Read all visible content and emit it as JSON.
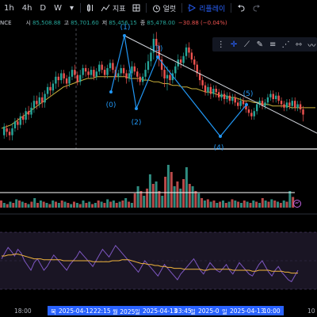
{
  "toolbar": {
    "timeframes": [
      "1h",
      "4h",
      "D",
      "W"
    ],
    "chevron": "▾",
    "indicators_label": "지표",
    "alert_label": "얼럿",
    "replay_label": "리플레이",
    "icons": [
      "candle-type-icon",
      "indicators-icon",
      "layout-icon",
      "alert-icon",
      "replay-icon",
      "undo-icon",
      "redo-icon"
    ]
  },
  "legend": {
    "symbol_fragment": "NCE",
    "open_label": "시",
    "open": "85,508.88",
    "high_label": "고",
    "high": "85,701.60",
    "low_label": "저",
    "low": "85,456.15",
    "close_label": "종",
    "close": "85,478.00",
    "change": "−30.88 (−0.04%)"
  },
  "drawing_tools": [
    "crosshair",
    "trend-line",
    "brush",
    "fib",
    "pattern",
    "measure",
    "wave"
  ],
  "elliott_labels": [
    "(0)",
    "(1)",
    "(2)",
    "(3)",
    "(4)",
    "(5)"
  ],
  "time_axis": {
    "left_label": "18:00",
    "right_label": "10",
    "highlight_segments": [
      "목",
      "2025-04-12",
      "22:15",
      "월 2025",
      "일",
      "2025-04-13",
      "03:45",
      "일",
      "2025-0",
      "일",
      "2025-04-13",
      "10:00"
    ]
  },
  "colors": {
    "up": "#26a69a",
    "down": "#ef5350",
    "ma": "#c9b03a",
    "wave": "#2196f3",
    "rsi": "#7e57c2",
    "rsi_ma": "#f0b43c",
    "accent": "#2962ff"
  },
  "price_chart": {
    "candles": [
      [
        68,
        73,
        66,
        75
      ],
      [
        72,
        70,
        67,
        74
      ],
      [
        70,
        68,
        65,
        72
      ],
      [
        68,
        72,
        65,
        75
      ],
      [
        72,
        76,
        70,
        78
      ],
      [
        76,
        74,
        71,
        78
      ],
      [
        74,
        79,
        72,
        81
      ],
      [
        79,
        77,
        74,
        81
      ],
      [
        77,
        82,
        75,
        84
      ],
      [
        82,
        80,
        77,
        85
      ],
      [
        80,
        84,
        78,
        87
      ],
      [
        84,
        88,
        81,
        91
      ],
      [
        88,
        86,
        83,
        91
      ],
      [
        86,
        90,
        84,
        93
      ],
      [
        90,
        87,
        84,
        93
      ],
      [
        87,
        92,
        84,
        94
      ],
      [
        92,
        96,
        90,
        98
      ],
      [
        96,
        94,
        91,
        99
      ],
      [
        94,
        98,
        92,
        100
      ],
      [
        98,
        102,
        95,
        105
      ],
      [
        102,
        100,
        96,
        104
      ],
      [
        100,
        104,
        98,
        106
      ],
      [
        104,
        101,
        98,
        106
      ],
      [
        101,
        98,
        95,
        103
      ],
      [
        98,
        102,
        96,
        105
      ],
      [
        102,
        106,
        100,
        108
      ],
      [
        106,
        103,
        101,
        109
      ],
      [
        103,
        99,
        97,
        105
      ],
      [
        99,
        103,
        97,
        106
      ],
      [
        103,
        107,
        101,
        109
      ],
      [
        107,
        105,
        102,
        109
      ],
      [
        105,
        103,
        101,
        107
      ],
      [
        103,
        106,
        101,
        108
      ],
      [
        106,
        102,
        100,
        108
      ],
      [
        102,
        105,
        100,
        107
      ],
      [
        105,
        109,
        103,
        111
      ],
      [
        109,
        106,
        104,
        111
      ],
      [
        106,
        103,
        101,
        108
      ],
      [
        103,
        107,
        101,
        109
      ],
      [
        107,
        110,
        105,
        112
      ],
      [
        110,
        106,
        104,
        112
      ],
      [
        106,
        102,
        100,
        108
      ],
      [
        102,
        104,
        99,
        106
      ],
      [
        104,
        107,
        102,
        109
      ],
      [
        107,
        104,
        102,
        109
      ],
      [
        104,
        101,
        98,
        106
      ],
      [
        101,
        104,
        99,
        106
      ],
      [
        104,
        108,
        102,
        111
      ],
      [
        108,
        105,
        103,
        110
      ],
      [
        105,
        102,
        99,
        107
      ],
      [
        102,
        99,
        97,
        104
      ],
      [
        99,
        102,
        97,
        104
      ],
      [
        102,
        106,
        100,
        110
      ],
      [
        106,
        111,
        104,
        115
      ],
      [
        111,
        116,
        108,
        120
      ],
      [
        116,
        124,
        112,
        127
      ],
      [
        124,
        120,
        114,
        128
      ],
      [
        120,
        112,
        108,
        122
      ],
      [
        112,
        106,
        102,
        114
      ],
      [
        106,
        101,
        96,
        108
      ],
      [
        101,
        103,
        94,
        108
      ],
      [
        103,
        100,
        97,
        106
      ],
      [
        100,
        104,
        98,
        106
      ],
      [
        104,
        108,
        101,
        110
      ],
      [
        108,
        112,
        106,
        115
      ],
      [
        112,
        110,
        107,
        114
      ],
      [
        110,
        114,
        108,
        116
      ],
      [
        114,
        119,
        112,
        121
      ],
      [
        119,
        116,
        113,
        122
      ],
      [
        116,
        112,
        110,
        118
      ],
      [
        112,
        109,
        106,
        114
      ],
      [
        109,
        104,
        102,
        111
      ],
      [
        104,
        100,
        97,
        106
      ],
      [
        100,
        97,
        95,
        102
      ],
      [
        97,
        93,
        91,
        99
      ],
      [
        93,
        96,
        91,
        98
      ],
      [
        96,
        92,
        89,
        98
      ],
      [
        92,
        95,
        90,
        97
      ],
      [
        95,
        93,
        90,
        97
      ],
      [
        93,
        90,
        88,
        95
      ],
      [
        90,
        92,
        88,
        94
      ],
      [
        92,
        89,
        86,
        94
      ],
      [
        89,
        91,
        87,
        93
      ],
      [
        91,
        88,
        86,
        93
      ],
      [
        88,
        90,
        86,
        92
      ],
      [
        90,
        87,
        85,
        92
      ],
      [
        87,
        85,
        83,
        89
      ],
      [
        85,
        88,
        83,
        90
      ],
      [
        88,
        86,
        84,
        90
      ],
      [
        86,
        83,
        81,
        88
      ],
      [
        83,
        81,
        79,
        85
      ],
      [
        81,
        79,
        77,
        83
      ],
      [
        79,
        82,
        77,
        84
      ],
      [
        82,
        86,
        80,
        88
      ],
      [
        86,
        88,
        84,
        90
      ],
      [
        88,
        85,
        83,
        90
      ],
      [
        85,
        87,
        83,
        89
      ],
      [
        87,
        90,
        85,
        92
      ],
      [
        90,
        92,
        88,
        94
      ],
      [
        92,
        89,
        87,
        94
      ],
      [
        89,
        91,
        87,
        93
      ],
      [
        91,
        88,
        86,
        93
      ],
      [
        88,
        86,
        84,
        90
      ],
      [
        86,
        84,
        82,
        88
      ],
      [
        84,
        87,
        82,
        89
      ],
      [
        87,
        85,
        83,
        89
      ],
      [
        85,
        88,
        83,
        90
      ],
      [
        88,
        84,
        82,
        90
      ],
      [
        84,
        86,
        82,
        88
      ],
      [
        86,
        83,
        81,
        88
      ],
      [
        83,
        80,
        76,
        85
      ]
    ],
    "moving_average": [
      72,
      73,
      74,
      76,
      78,
      80,
      82,
      84,
      86,
      88,
      90,
      92,
      94,
      96,
      97,
      98,
      99,
      100,
      101,
      101,
      102,
      102,
      102,
      102,
      102,
      102,
      102,
      101,
      101,
      101,
      100,
      100,
      99,
      99,
      98,
      98,
      97,
      97,
      96,
      96,
      95,
      95,
      94,
      93,
      93,
      92,
      91,
      91,
      90,
      90,
      89,
      88,
      88,
      87,
      87,
      86,
      86,
      85,
      85,
      85,
      85,
      84,
      84,
      84,
      84,
      84,
      84
    ]
  },
  "volume": [
    [
      0,
      6
    ],
    [
      1,
      4
    ],
    [
      0,
      3
    ],
    [
      1,
      5
    ],
    [
      0,
      4
    ],
    [
      1,
      7
    ],
    [
      0,
      6
    ],
    [
      1,
      5
    ],
    [
      0,
      4
    ],
    [
      1,
      3
    ],
    [
      0,
      5
    ],
    [
      1,
      8
    ],
    [
      0,
      4
    ],
    [
      1,
      6
    ],
    [
      0,
      5
    ],
    [
      1,
      4
    ],
    [
      0,
      3
    ],
    [
      1,
      6
    ],
    [
      0,
      5
    ],
    [
      1,
      4
    ],
    [
      0,
      6
    ],
    [
      1,
      5
    ],
    [
      0,
      4
    ],
    [
      1,
      3
    ],
    [
      0,
      5
    ],
    [
      1,
      4
    ],
    [
      0,
      3
    ],
    [
      1,
      6
    ],
    [
      0,
      4
    ],
    [
      1,
      5
    ],
    [
      0,
      3
    ],
    [
      1,
      4
    ],
    [
      0,
      6
    ],
    [
      1,
      5
    ],
    [
      0,
      4
    ],
    [
      1,
      7
    ],
    [
      0,
      5
    ],
    [
      1,
      6
    ],
    [
      0,
      4
    ],
    [
      1,
      5
    ],
    [
      0,
      6
    ],
    [
      1,
      8
    ],
    [
      0,
      5
    ],
    [
      1,
      4
    ],
    [
      0,
      12
    ],
    [
      1,
      18
    ],
    [
      0,
      14
    ],
    [
      1,
      10
    ],
    [
      0,
      16
    ],
    [
      1,
      28
    ],
    [
      0,
      20
    ],
    [
      1,
      22
    ],
    [
      0,
      14
    ],
    [
      1,
      10
    ],
    [
      0,
      26
    ],
    [
      1,
      36
    ],
    [
      0,
      30
    ],
    [
      1,
      18
    ],
    [
      0,
      22
    ],
    [
      1,
      16
    ],
    [
      0,
      24
    ],
    [
      1,
      34
    ],
    [
      0,
      20
    ],
    [
      1,
      18
    ],
    [
      0,
      14
    ],
    [
      1,
      12
    ],
    [
      0,
      8
    ],
    [
      1,
      6
    ],
    [
      0,
      7
    ],
    [
      1,
      5
    ],
    [
      0,
      6
    ],
    [
      1,
      4
    ],
    [
      0,
      5
    ],
    [
      1,
      6
    ],
    [
      0,
      4
    ],
    [
      1,
      5
    ],
    [
      0,
      7
    ],
    [
      1,
      6
    ],
    [
      0,
      5
    ],
    [
      1,
      4
    ],
    [
      0,
      6
    ],
    [
      1,
      5
    ],
    [
      0,
      4
    ],
    [
      1,
      6
    ],
    [
      0,
      5
    ],
    [
      1,
      4
    ],
    [
      0,
      8
    ],
    [
      1,
      6
    ],
    [
      0,
      5
    ],
    [
      1,
      7
    ],
    [
      0,
      6
    ],
    [
      1,
      5
    ],
    [
      0,
      4
    ],
    [
      1,
      6
    ],
    [
      0,
      5
    ],
    [
      1,
      14
    ],
    [
      0,
      9
    ]
  ],
  "rsi": {
    "values": [
      52,
      58,
      64,
      60,
      55,
      62,
      58,
      50,
      45,
      40,
      48,
      52,
      46,
      40,
      44,
      50,
      56,
      52,
      48,
      44,
      40,
      46,
      50,
      54,
      60,
      56,
      52,
      48,
      44,
      50,
      56,
      62,
      58,
      54,
      60,
      66,
      62,
      58,
      54,
      50,
      46,
      42,
      38,
      44,
      50,
      46,
      42,
      38,
      34,
      40,
      46,
      42,
      38,
      34,
      30,
      36,
      40,
      44,
      48,
      52,
      46,
      40,
      36,
      42,
      48,
      44,
      40,
      38,
      42,
      46,
      40,
      36,
      42,
      48,
      44,
      40,
      36,
      34,
      40,
      46,
      50,
      44,
      38,
      34,
      40,
      44,
      38,
      34,
      30,
      28,
      34,
      40
    ],
    "ma": [
      55,
      55,
      56,
      56,
      57,
      57,
      56,
      55,
      54,
      53,
      52,
      52,
      52,
      51,
      51,
      51,
      51,
      51,
      51,
      50,
      50,
      50,
      50,
      50,
      50,
      50,
      50,
      50,
      49,
      49,
      49,
      49,
      49,
      49,
      50,
      50,
      50,
      51,
      51,
      51,
      50,
      49,
      48,
      47,
      47,
      46,
      46,
      45,
      45,
      44,
      44,
      43,
      43,
      42,
      42,
      42,
      41,
      41,
      41,
      41,
      41,
      41,
      40,
      40,
      41,
      41,
      41,
      41,
      41,
      41,
      41,
      40,
      40,
      40,
      40,
      40,
      40,
      39,
      39,
      40,
      40,
      40,
      40,
      39,
      39,
      39,
      39,
      38,
      38,
      37,
      37,
      37
    ]
  }
}
